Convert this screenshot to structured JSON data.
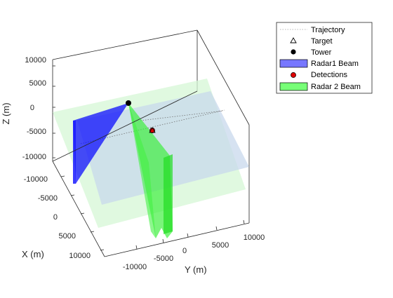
{
  "chart_data": {
    "type": "3d-scene",
    "xlabel": "X (m)",
    "ylabel": "Y (m)",
    "zlabel": "Z (m)",
    "x_ticks": [
      "-10000",
      "-5000",
      "0",
      "5000",
      "10000"
    ],
    "y_ticks": [
      "-10000",
      "-5000",
      "0",
      "5000",
      "10000"
    ],
    "z_ticks": [
      "10000",
      "5000",
      "0",
      "-5000",
      "-10000"
    ],
    "legend": {
      "placement": "top-right",
      "entries": [
        {
          "label": "Trajectory",
          "marker": "dotted-line",
          "color": "#a0a0a0"
        },
        {
          "label": "Target",
          "marker": "open-triangle",
          "color": "#000000"
        },
        {
          "label": "Tower",
          "marker": "filled-circle",
          "color": "#000000"
        },
        {
          "label": "Radar1 Beam",
          "marker": "patch",
          "color": "#7777ff"
        },
        {
          "label": "Detections",
          "marker": "filled-circle-red",
          "color": "#e00000"
        },
        {
          "label": "Radar 2 Beam",
          "marker": "patch",
          "color": "#77ff77"
        }
      ]
    },
    "colors": {
      "radar1_beam": "#0000ff",
      "radar2_beam": "#33ee33",
      "radar1_coverage": "#c8d8ec",
      "radar2_coverage": "#d6f7d6",
      "tower": "#000000",
      "detection": "#e00000"
    },
    "grid": false
  }
}
